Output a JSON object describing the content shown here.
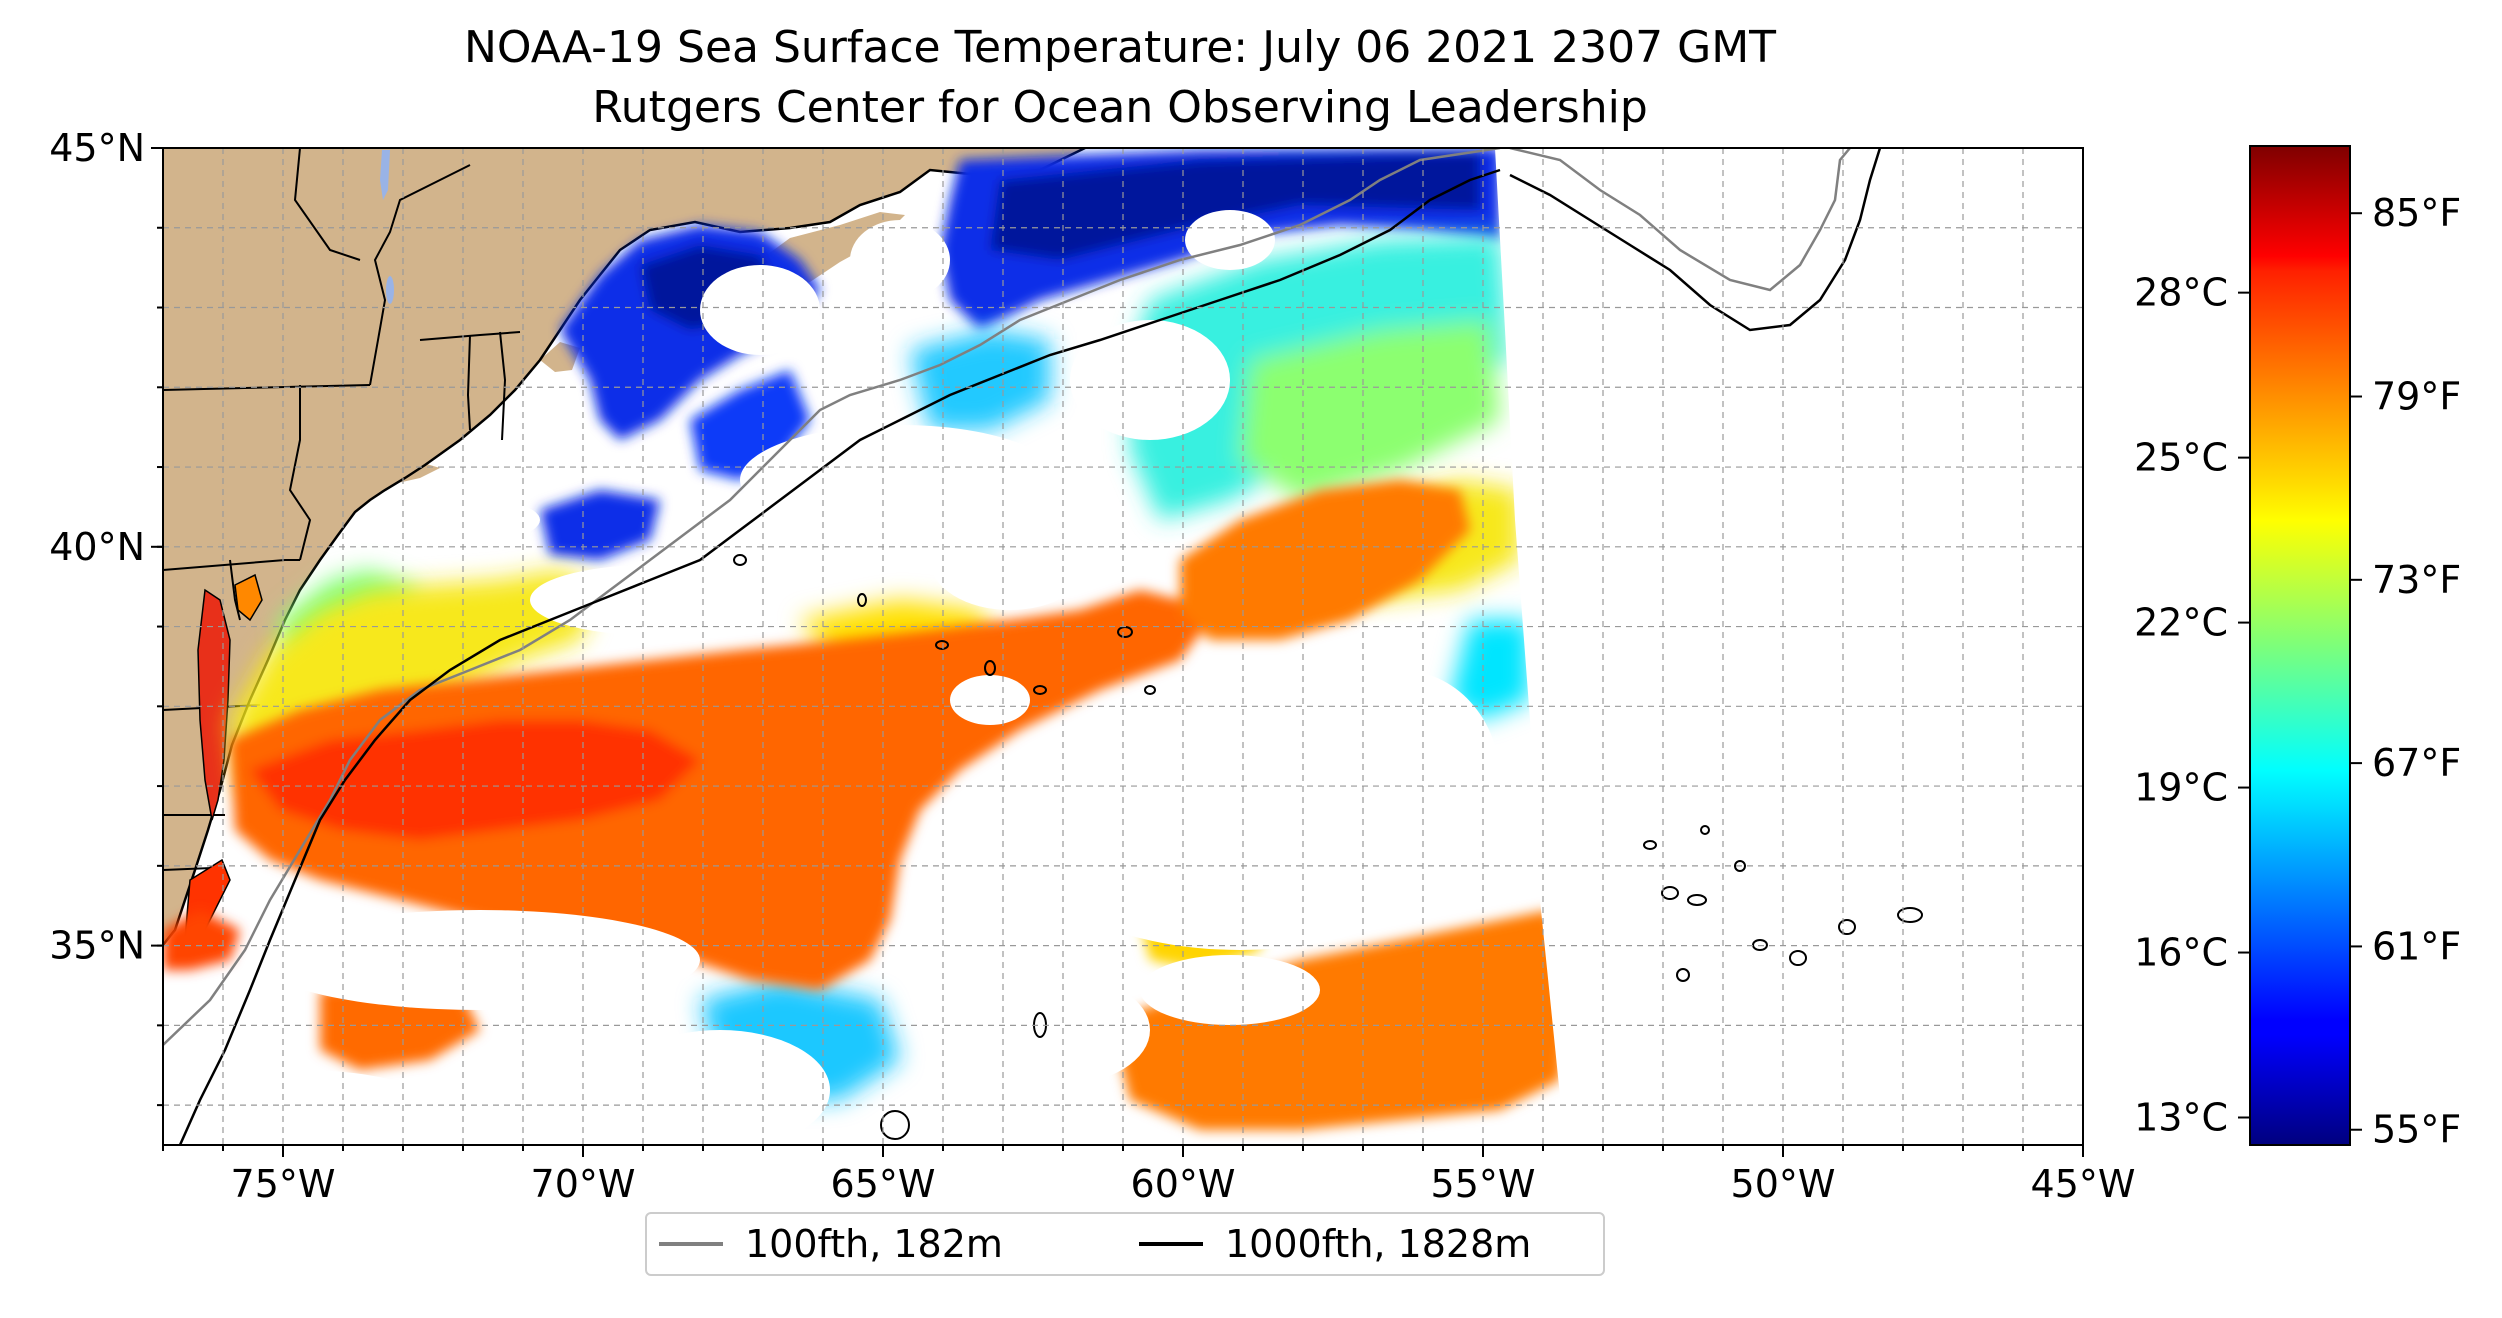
{
  "title": {
    "line1": "NOAA-19 Sea Surface Temperature: July 06 2021 2307 GMT",
    "line2": "Rutgers Center for Ocean Observing Leadership"
  },
  "map": {
    "lon_range": [
      -77,
      -45
    ],
    "lat_range": [
      32.5,
      45
    ],
    "lon_ticks": [
      {
        "value": -75,
        "label": "75°W"
      },
      {
        "value": -70,
        "label": "70°W"
      },
      {
        "value": -65,
        "label": "65°W"
      },
      {
        "value": -60,
        "label": "60°W"
      },
      {
        "value": -55,
        "label": "55°W"
      },
      {
        "value": -50,
        "label": "50°W"
      },
      {
        "value": -45,
        "label": "45°W"
      }
    ],
    "lat_ticks": [
      {
        "value": 45,
        "label": "45°N"
      },
      {
        "value": 40,
        "label": "40°N"
      },
      {
        "value": 35,
        "label": "35°N"
      }
    ],
    "gridlines": "dashed, every 1°",
    "colors": {
      "land": "#d2b48c",
      "cloud_nodata": "#ffffff",
      "lakes": "#99b3e6",
      "isobath_100fth": "#808080",
      "isobath_1000fth": "#000000"
    }
  },
  "colorbar": {
    "colormap": "jet",
    "fahrenheit_range": [
      54.5,
      87.2
    ],
    "celsius_ticks": [
      {
        "value": 13,
        "label": "13°C"
      },
      {
        "value": 16,
        "label": "16°C"
      },
      {
        "value": 19,
        "label": "19°C"
      },
      {
        "value": 22,
        "label": "22°C"
      },
      {
        "value": 25,
        "label": "25°C"
      },
      {
        "value": 28,
        "label": "28°C"
      }
    ],
    "fahrenheit_ticks": [
      {
        "value": 55,
        "label": "55°F"
      },
      {
        "value": 61,
        "label": "61°F"
      },
      {
        "value": 67,
        "label": "67°F"
      },
      {
        "value": 73,
        "label": "73°F"
      },
      {
        "value": 79,
        "label": "79°F"
      },
      {
        "value": 85,
        "label": "85°F"
      }
    ]
  },
  "legend": {
    "items": [
      {
        "label": "100fth, 182m",
        "color": "#808080"
      },
      {
        "label": "1000fth, 1828m",
        "color": "#000000"
      }
    ]
  }
}
